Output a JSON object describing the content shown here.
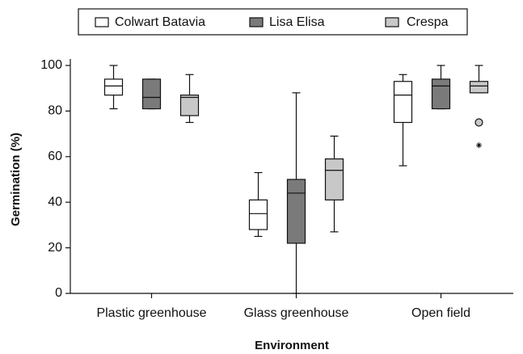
{
  "chart_data": {
    "type": "box",
    "xlabel": "Environment",
    "ylabel": "Germination (%)",
    "categories": [
      "Plastic greenhouse",
      "Glass greenhouse",
      "Open field"
    ],
    "ylim": [
      0,
      100
    ],
    "yticks": [
      0,
      20,
      40,
      60,
      80,
      100
    ],
    "series": [
      {
        "name": "Colwart Batavia",
        "color": "#ffffff",
        "values": [
          {
            "min": 81,
            "q1": 87,
            "median": 91,
            "q3": 94,
            "max": 100
          },
          {
            "min": 25,
            "q1": 28,
            "median": 35,
            "q3": 41,
            "max": 53
          },
          {
            "min": 56,
            "q1": 75,
            "median": 87,
            "q3": 93,
            "max": 96
          }
        ],
        "outliers": [
          [],
          [],
          []
        ],
        "extremes": [
          [],
          [],
          []
        ]
      },
      {
        "name": "Lisa Elisa",
        "color": "#7a7a7a",
        "values": [
          {
            "min": 81,
            "q1": 81,
            "median": 86,
            "q3": 94,
            "max": 94
          },
          {
            "min": 0,
            "q1": 22,
            "median": 44,
            "q3": 50,
            "max": 88
          },
          {
            "min": 81,
            "q1": 81,
            "median": 91,
            "q3": 94,
            "max": 100
          }
        ],
        "outliers": [
          [],
          [],
          []
        ],
        "extremes": [
          [],
          [],
          []
        ]
      },
      {
        "name": "Crespa",
        "color": "#c8c8c8",
        "values": [
          {
            "min": 75,
            "q1": 78,
            "median": 86,
            "q3": 87,
            "max": 96
          },
          {
            "min": 27,
            "q1": 41,
            "median": 54,
            "q3": 59,
            "max": 69
          },
          {
            "min": 88,
            "q1": 88,
            "median": 91,
            "q3": 93,
            "max": 100
          }
        ],
        "outliers": [
          [],
          [],
          [
            75
          ]
        ],
        "extremes": [
          [],
          [],
          [
            65
          ]
        ]
      }
    ]
  }
}
